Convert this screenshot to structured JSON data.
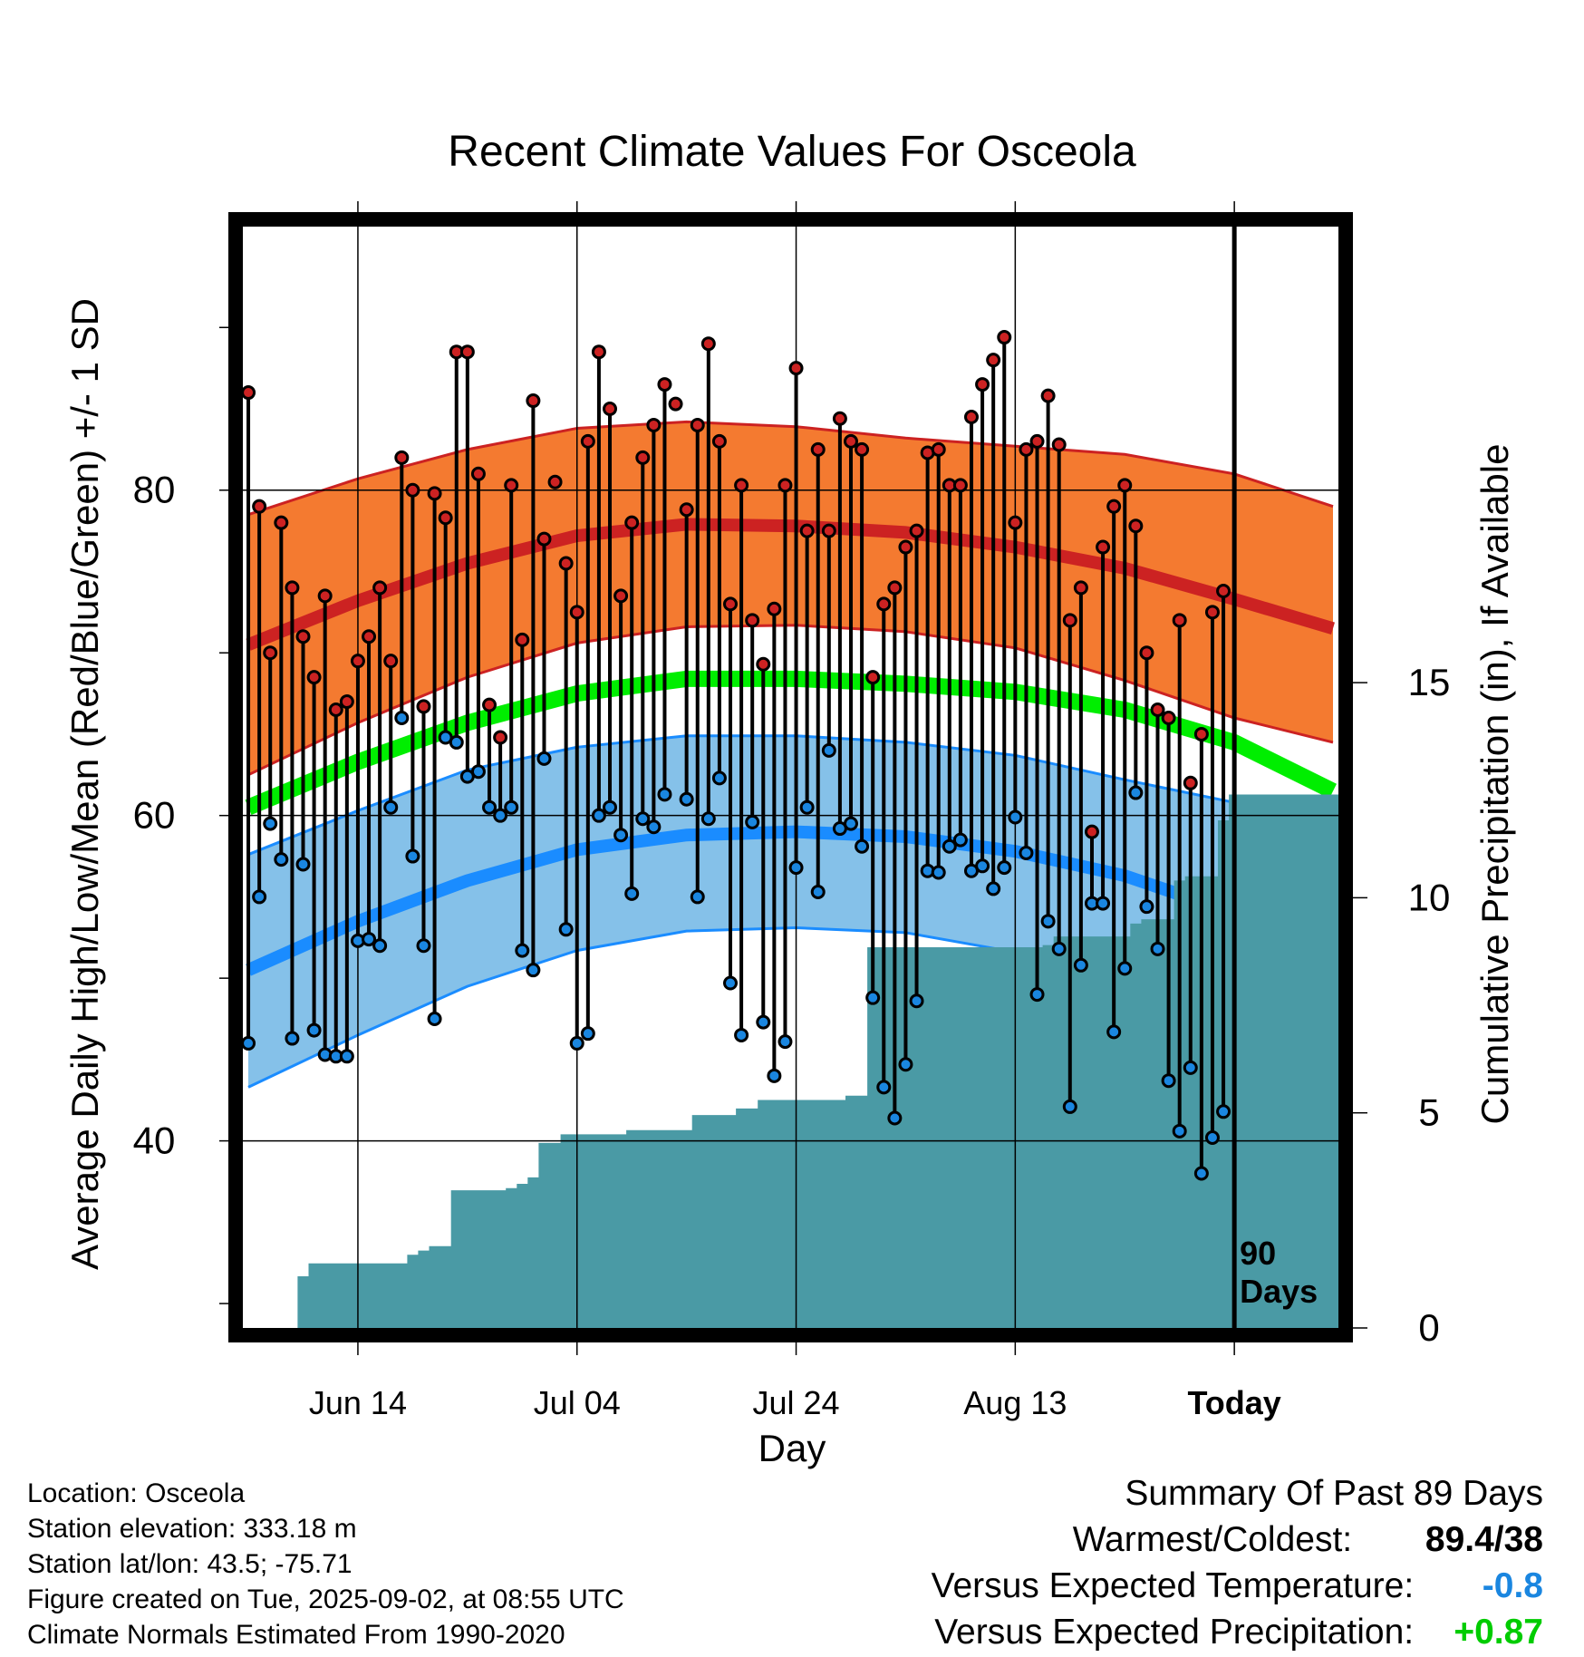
{
  "chart_data": {
    "type": "line",
    "title": "Recent Climate Values For Osceola",
    "xlabel": "Day",
    "ylabel": "Average Daily High/Low/Mean (Red/Blue/Green) +/- 1 SD",
    "y2label": "Cumulative Precipitation (in), If Available",
    "xtick_labels": [
      "Jun 14",
      "Jul 04",
      "Jul 24",
      "Aug 13",
      "Today"
    ],
    "xtick_days": [
      10,
      30,
      50,
      70,
      90
    ],
    "ylim": [
      28.5,
      96.2
    ],
    "yticks": [
      40,
      60,
      80
    ],
    "y2lim": [
      0,
      25.6
    ],
    "y2ticks": [
      0,
      5,
      10,
      15
    ],
    "xlim": [
      -0.5,
      99.5
    ],
    "today_day": 90,
    "today_label": "90 Days",
    "grid": true,
    "colors": {
      "high_band": "#f47a30",
      "high_line": "#cc2222",
      "low_band": "#85c1e9",
      "low_line": "#1a8cff",
      "mean_line": "#00ee00",
      "precip": "#4a9aa5",
      "high_dot": "#cc2222",
      "low_dot": "#1a86e0"
    },
    "normals": {
      "days": [
        0,
        10,
        20,
        30,
        40,
        50,
        60,
        70,
        80,
        90,
        99
      ],
      "high_mean": [
        70.5,
        73.2,
        75.5,
        77.2,
        77.9,
        77.8,
        77.4,
        76.5,
        75.2,
        73.3,
        71.5
      ],
      "high_upper": [
        78.5,
        80.7,
        82.5,
        83.8,
        84.2,
        83.9,
        83.2,
        82.7,
        82.2,
        81.0,
        79.0
      ],
      "high_lower": [
        62.5,
        65.7,
        68.5,
        70.6,
        71.6,
        71.7,
        71.3,
        70.3,
        68.3,
        66.0,
        64.5
      ],
      "mean": [
        60.5,
        63.3,
        65.7,
        67.5,
        68.4,
        68.4,
        68.1,
        67.6,
        66.5,
        64.5,
        61.5
      ],
      "low_mean": [
        50.5,
        53.5,
        56.0,
        57.9,
        58.8,
        59.0,
        58.7,
        57.8,
        56.3,
        54.0,
        51.5
      ],
      "low_upper": [
        57.6,
        60.3,
        62.8,
        64.2,
        64.9,
        64.9,
        64.5,
        63.7,
        62.2,
        60.8,
        58.8
      ],
      "low_lower": [
        43.3,
        46.5,
        49.5,
        51.7,
        52.9,
        53.1,
        52.8,
        51.6,
        49.0,
        46.5,
        43.0
      ]
    },
    "series": [
      {
        "name": "High",
        "values": [
          86,
          79,
          70,
          78,
          74,
          71,
          68.5,
          73.5,
          66.5,
          67,
          69.5,
          71,
          74,
          69.5,
          82,
          80,
          66.7,
          79.8,
          78.3,
          88.5,
          88.5,
          81,
          66.8,
          64.8,
          80.3,
          70.8,
          85.5,
          77,
          80.5,
          75.5,
          72.5,
          83,
          88.5,
          85,
          73.5,
          78,
          82,
          84,
          86.5,
          85.3,
          78.8,
          84,
          89,
          83,
          73,
          80.3,
          72,
          69.3,
          72.7,
          80.3,
          87.5,
          77.5,
          82.5,
          77.5,
          84.4,
          83,
          82.5,
          68.5,
          73,
          74,
          76.5,
          77.5,
          82.3,
          82.5,
          80.3,
          80.3,
          84.5,
          86.5,
          88,
          89.4,
          78,
          82.5,
          83,
          85.8,
          82.8,
          72,
          74,
          59,
          76.5,
          79,
          80.3,
          77.8,
          70,
          66.5,
          66,
          72,
          62,
          65,
          72.5,
          73.8
        ]
      },
      {
        "name": "Low",
        "values": [
          46,
          55,
          59.5,
          57.3,
          46.3,
          57,
          46.8,
          45.3,
          45.2,
          45.2,
          52.3,
          52.4,
          52,
          60.5,
          66,
          57.5,
          52,
          47.5,
          64.8,
          64.5,
          62.4,
          62.7,
          60.5,
          60,
          60.5,
          51.7,
          50.5,
          63.5,
          null,
          53,
          46,
          46.6,
          60,
          60.5,
          58.8,
          55.2,
          59.8,
          59.3,
          61.3,
          null,
          61,
          55,
          59.8,
          62.3,
          49.7,
          46.5,
          59.6,
          47.3,
          44,
          46.1,
          56.8,
          60.5,
          55.3,
          64,
          59.2,
          59.5,
          58.1,
          48.8,
          43.3,
          41.4,
          44.7,
          48.6,
          56.6,
          56.5,
          58.1,
          58.5,
          56.6,
          56.9,
          55.5,
          56.8,
          59.9,
          57.7,
          49,
          53.5,
          51.8,
          42.1,
          50.8,
          54.6,
          54.6,
          46.7,
          50.6,
          61.4,
          54.4,
          51.8,
          43.7,
          40.6,
          44.5,
          38,
          40.2,
          41.8
        ]
      },
      {
        "name": "Cumulative Precipitation",
        "values": [
          0,
          0,
          0,
          0,
          0,
          1.2,
          1.5,
          1.5,
          1.5,
          1.5,
          1.5,
          1.5,
          1.5,
          1.5,
          1.5,
          1.7,
          1.8,
          1.9,
          1.9,
          3.2,
          3.2,
          3.2,
          3.2,
          3.2,
          3.25,
          3.35,
          3.5,
          4.3,
          4.3,
          4.5,
          4.5,
          4.5,
          4.5,
          4.5,
          4.5,
          4.6,
          4.6,
          4.6,
          4.6,
          4.6,
          4.6,
          4.95,
          4.95,
          4.95,
          4.95,
          5.1,
          5.1,
          5.3,
          5.3,
          5.3,
          5.3,
          5.3,
          5.3,
          5.3,
          5.3,
          5.4,
          5.4,
          8.85,
          8.85,
          8.85,
          8.85,
          8.85,
          8.85,
          8.85,
          8.85,
          8.85,
          8.85,
          8.85,
          8.85,
          8.85,
          8.85,
          8.85,
          8.85,
          8.9,
          9.1,
          9.1,
          9.1,
          9.1,
          9.1,
          9.1,
          9.1,
          9.4,
          9.5,
          9.5,
          9.5,
          10.4,
          10.5,
          10.5,
          10.5,
          11.8,
          12.4,
          12.4,
          12.4,
          12.4,
          12.4,
          12.4,
          12.4,
          12.4,
          12.4,
          12.4,
          12.4
        ]
      }
    ]
  },
  "info": {
    "location": "Location: Osceola",
    "elevation": "Station elevation: 333.18 m",
    "latlon": "Station lat/lon: 43.5; -75.71",
    "created": "Figure created on Tue, 2025-09-02, at 08:55 UTC",
    "normals": "Climate Normals Estimated From 1990-2020"
  },
  "summary": {
    "heading": "Summary Of Past 89 Days",
    "warmest_label": "Warmest/Coldest:",
    "warmest_value": "89.4/38",
    "temp_label": "Versus Expected Temperature:",
    "temp_value": "-0.8",
    "temp_color": "#1a86e0",
    "precip_label": "Versus Expected Precipitation:",
    "precip_value": "+0.87",
    "precip_color": "#00cc00"
  }
}
